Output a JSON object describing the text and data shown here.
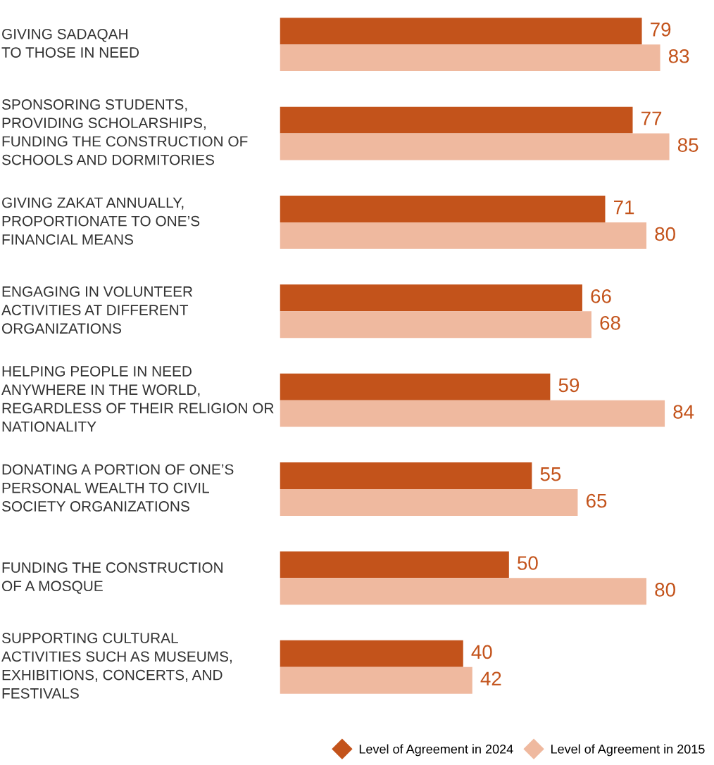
{
  "chart_data": {
    "type": "bar",
    "orientation": "horizontal",
    "data_labels": true,
    "legend": "bottom right",
    "marker": "diamond",
    "categories": [
      "GIVING SADAQAH\nTO THOSE IN NEED",
      "SPONSORING STUDENTS,\nPROVIDING SCHOLARSHIPS,\nFUNDING THE CONSTRUCTION OF\nSCHOOLS AND DORMITORIES",
      "GIVING ZAKAT ANNUALLY,\nPROPORTIONATE TO ONE’S\nFINANCIAL MEANS",
      "ENGAGING IN VOLUNTEER\nACTIVITIES AT DIFFERENT\nORGANIZATIONS",
      "HELPING PEOPLE IN NEED\nANYWHERE IN THE WORLD,\nREGARDLESS OF THEIR RELIGION OR\nNATIONALITY",
      "DONATING A PORTION OF ONE’S\nPERSONAL WEALTH TO CIVIL\nSOCIETY ORGANIZATIONS",
      "FUNDING THE CONSTRUCTION\nOF A MOSQUE",
      "SUPPORTING CULTURAL\nACTIVITIES SUCH AS MUSEUMS,\nEXHIBITIONS, CONCERTS, AND\nFESTIVALS"
    ],
    "series": [
      {
        "name": "Level of Agreement in 2024",
        "color": "#c3531b",
        "values": [
          79,
          77,
          71,
          66,
          59,
          55,
          50,
          40
        ]
      },
      {
        "name": "Level of Agreement in 2015",
        "color": "#efb99f",
        "values": [
          83,
          85,
          80,
          68,
          84,
          65,
          80,
          42
        ]
      }
    ]
  }
}
